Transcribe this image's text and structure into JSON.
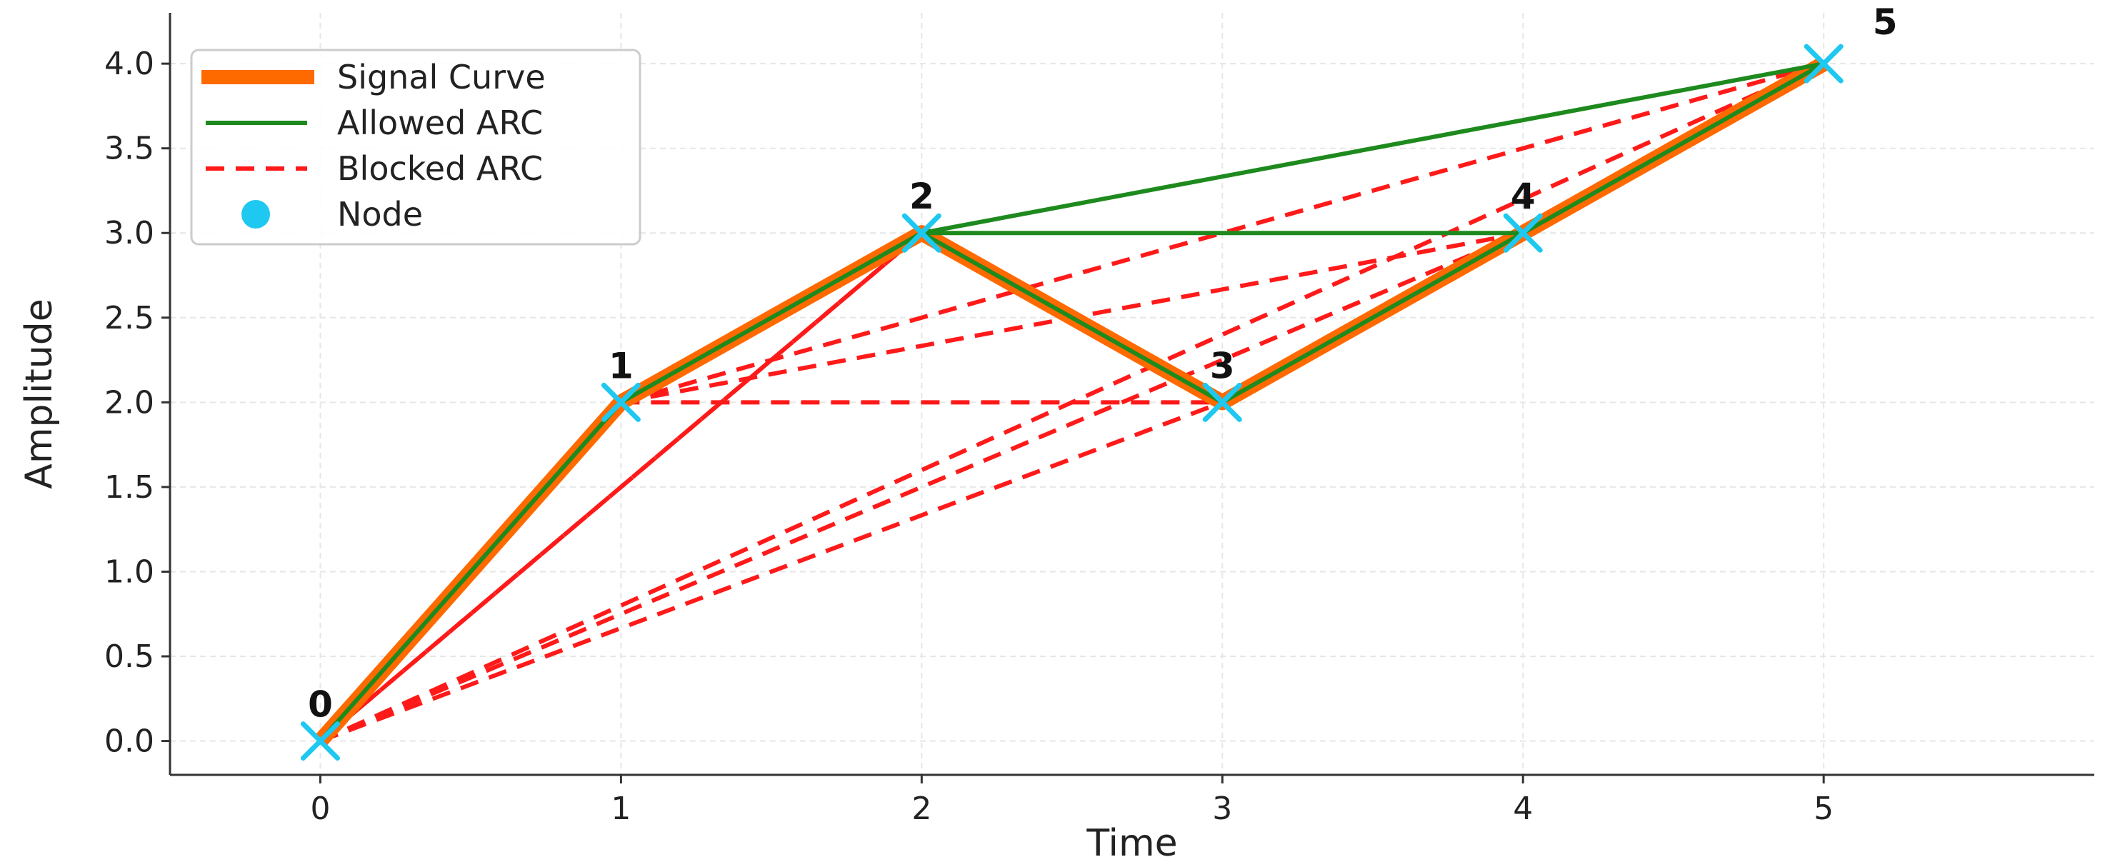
{
  "chart_data": {
    "type": "line",
    "title": "",
    "xlabel": "Time",
    "ylabel": "Amplitude",
    "xlim": [
      -0.5,
      5.9
    ],
    "ylim": [
      -0.2,
      4.3
    ],
    "x_ticks": [
      0,
      1,
      2,
      3,
      4,
      5
    ],
    "y_ticks": [
      0.0,
      0.5,
      1.0,
      1.5,
      2.0,
      2.5,
      3.0,
      3.5,
      4.0
    ],
    "grid": true,
    "legend_position": "top-left",
    "colors": {
      "signal": "#ff6a00",
      "allowed": "#1e8a1e",
      "blocked": "#ff1a1a",
      "node": "#1ec8f0"
    },
    "nodes": [
      {
        "label": "0",
        "x": 0,
        "y": 0.0
      },
      {
        "label": "1",
        "x": 1,
        "y": 2.0
      },
      {
        "label": "2",
        "x": 2,
        "y": 3.0
      },
      {
        "label": "3",
        "x": 3,
        "y": 2.0
      },
      {
        "label": "4",
        "x": 4,
        "y": 3.0
      },
      {
        "label": "5",
        "x": 5,
        "y": 4.0
      }
    ],
    "signal_curve": [
      0,
      1,
      2,
      3,
      4,
      5
    ],
    "allowed_arcs": [
      [
        0,
        1
      ],
      [
        1,
        2
      ],
      [
        2,
        3
      ],
      [
        3,
        4
      ],
      [
        4,
        5
      ],
      [
        2,
        4
      ],
      [
        2,
        5
      ]
    ],
    "blocked_arcs": [
      [
        0,
        2
      ],
      [
        0,
        3
      ],
      [
        0,
        4
      ],
      [
        0,
        5
      ],
      [
        1,
        3
      ],
      [
        1,
        4
      ],
      [
        1,
        5
      ],
      [
        2,
        0
      ],
      [
        3,
        5
      ]
    ],
    "legend": [
      {
        "key": "signal",
        "label": "Signal Curve"
      },
      {
        "key": "allowed",
        "label": "Allowed ARC"
      },
      {
        "key": "blocked",
        "label": "Blocked ARC"
      },
      {
        "key": "node",
        "label": "Node"
      }
    ]
  }
}
